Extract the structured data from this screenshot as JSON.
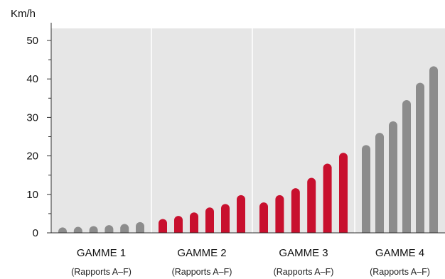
{
  "chart_data": {
    "type": "bar",
    "y_unit_label": "Km/h",
    "ylim": [
      0,
      50
    ],
    "y_ticks": [
      "0",
      "10",
      "20",
      "30",
      "40",
      "50"
    ],
    "grid": false,
    "groups": [
      {
        "label": "GAMME 1",
        "sublabel": "(Rapports A–F)",
        "color": "#8c8c8c",
        "values": [
          0.6,
          0.9,
          1.3,
          1.8,
          2.3,
          2.8
        ]
      },
      {
        "label": "GAMME 2",
        "sublabel": "(Rapports A–F)",
        "color": "#c8102e",
        "values": [
          3.6,
          4.4,
          5.3,
          6.6,
          7.5,
          9.8
        ]
      },
      {
        "label": "GAMME 3",
        "sublabel": "(Rapports A–F)",
        "color": "#c8102e",
        "values": [
          7.9,
          9.8,
          11.6,
          14.3,
          18.0,
          20.8
        ]
      },
      {
        "label": "GAMME 4",
        "sublabel": "(Rapports A–F)",
        "color": "#8c8c8c",
        "values": [
          22.8,
          26.0,
          29.0,
          34.5,
          39.0,
          43.3
        ]
      }
    ],
    "colors": {
      "background": "#e6e6e6",
      "separator": "#ffffff",
      "axis": "#333333"
    }
  }
}
